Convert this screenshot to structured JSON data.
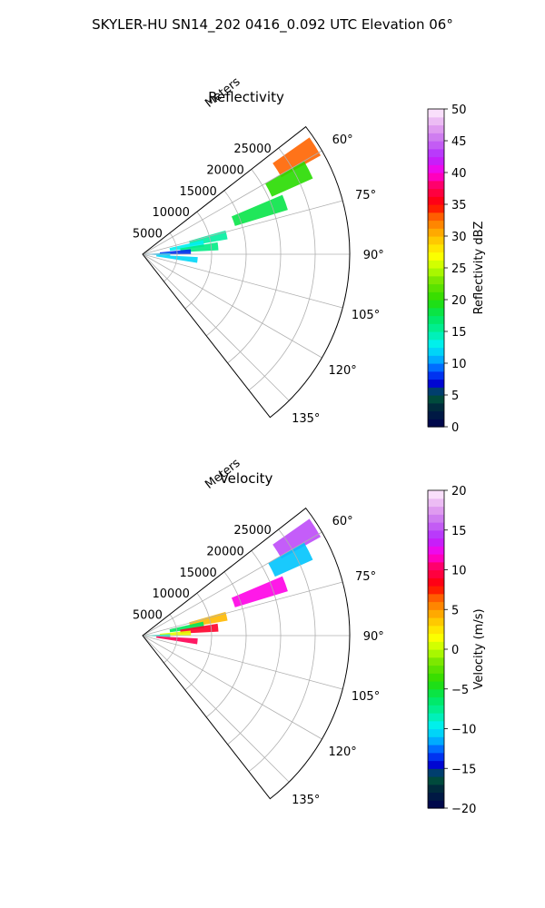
{
  "figure": {
    "suptitle": "SKYLER-HU  SN14_202  0416_0.092 UTC Elevation 06°"
  },
  "chart_data": [
    {
      "type": "heatmap",
      "title": "Reflectivity",
      "radial_label": "Meters",
      "radial_ticks": [
        "5000",
        "10000",
        "15000",
        "20000",
        "25000"
      ],
      "radial_tick_values": [
        5000,
        10000,
        15000,
        20000,
        25000
      ],
      "rmax": 30000,
      "angle_ticks": [
        "60°",
        "75°",
        "90°",
        "105°",
        "120°",
        "135°"
      ],
      "angle_tick_values": [
        60,
        75,
        90,
        105,
        120,
        135
      ],
      "theta_range_deg": [
        52,
        142
      ],
      "colorbar": {
        "label": "Reflectivity dBZ",
        "range": [
          0,
          50
        ],
        "ticks": [
          "0",
          "5",
          "10",
          "15",
          "20",
          "25",
          "30",
          "35",
          "40",
          "45",
          "50"
        ],
        "tick_values": [
          0,
          5,
          10,
          15,
          20,
          25,
          30,
          35,
          40,
          45,
          50
        ]
      },
      "echo_regions": [
        {
          "az": 58,
          "r0": 23000,
          "r1": 29500,
          "value": 33
        },
        {
          "az": 63,
          "r0": 20500,
          "r1": 27000,
          "value": 20
        },
        {
          "az": 70,
          "r0": 14000,
          "r1": 22000,
          "value": 18
        },
        {
          "az": 77,
          "r0": 7000,
          "r1": 12500,
          "value": 15
        },
        {
          "az": 80,
          "r0": 4000,
          "r1": 9000,
          "value": 13
        },
        {
          "az": 84,
          "r0": 5500,
          "r1": 11000,
          "value": 16
        },
        {
          "az": 87,
          "r0": 2500,
          "r1": 7000,
          "value": 8
        },
        {
          "az": 90,
          "r0": 0,
          "r1": 4000,
          "value": 11
        },
        {
          "az": 96,
          "r0": 2000,
          "r1": 8000,
          "value": 12
        }
      ]
    },
    {
      "type": "heatmap",
      "title": "Velocity",
      "radial_label": "Meters",
      "radial_ticks": [
        "5000",
        "10000",
        "15000",
        "20000",
        "25000"
      ],
      "radial_tick_values": [
        5000,
        10000,
        15000,
        20000,
        25000
      ],
      "rmax": 30000,
      "angle_ticks": [
        "60°",
        "75°",
        "90°",
        "105°",
        "120°",
        "135°"
      ],
      "angle_tick_values": [
        60,
        75,
        90,
        105,
        120,
        135
      ],
      "theta_range_deg": [
        52,
        142
      ],
      "colorbar": {
        "label": "Velocity (m/s)",
        "range": [
          -20,
          20
        ],
        "ticks": [
          "−20",
          "−15",
          "−10",
          "−5",
          "0",
          "5",
          "10",
          "15",
          "20"
        ],
        "tick_values": [
          -20,
          -15,
          -10,
          -5,
          0,
          5,
          10,
          15,
          20
        ]
      },
      "echo_regions": [
        {
          "az": 58,
          "r0": 23000,
          "r1": 29500,
          "value": 15
        },
        {
          "az": 63,
          "r0": 21000,
          "r1": 27000,
          "value": -11
        },
        {
          "az": 70,
          "r0": 14000,
          "r1": 22000,
          "value": 12
        },
        {
          "az": 77,
          "r0": 7000,
          "r1": 12500,
          "value": 4
        },
        {
          "az": 80,
          "r0": 4000,
          "r1": 9000,
          "value": -6
        },
        {
          "az": 84,
          "r0": 5500,
          "r1": 11000,
          "value": 9
        },
        {
          "az": 87,
          "r0": 2500,
          "r1": 7000,
          "value": 1
        },
        {
          "az": 90,
          "r0": 0,
          "r1": 4000,
          "value": -9
        },
        {
          "az": 96,
          "r0": 2000,
          "r1": 8000,
          "value": 10
        }
      ]
    }
  ]
}
